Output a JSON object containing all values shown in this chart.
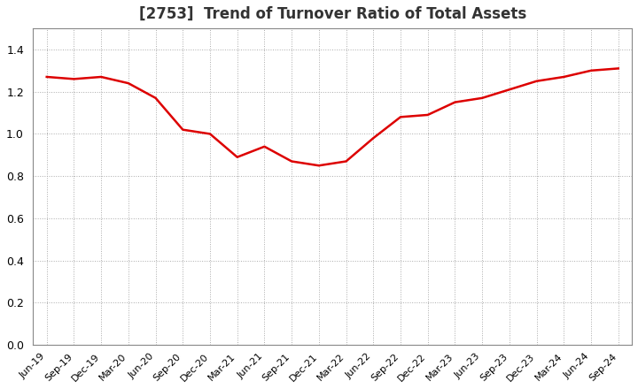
{
  "title": "[2753]  Trend of Turnover Ratio of Total Assets",
  "title_fontsize": 12,
  "title_color": "#333333",
  "line_color": "#dd0000",
  "line_width": 1.8,
  "background_color": "#ffffff",
  "grid_color": "#aaaaaa",
  "ylim": [
    0.0,
    1.5
  ],
  "yticks": [
    0.0,
    0.2,
    0.4,
    0.6,
    0.8,
    1.0,
    1.2,
    1.4
  ],
  "x_labels": [
    "Jun-19",
    "Sep-19",
    "Dec-19",
    "Mar-20",
    "Jun-20",
    "Sep-20",
    "Dec-20",
    "Mar-21",
    "Jun-21",
    "Sep-21",
    "Dec-21",
    "Mar-22",
    "Jun-22",
    "Sep-22",
    "Dec-22",
    "Mar-23",
    "Jun-23",
    "Sep-23",
    "Dec-23",
    "Mar-24",
    "Jun-24",
    "Sep-24"
  ],
  "values": [
    1.27,
    1.26,
    1.27,
    1.24,
    1.17,
    1.02,
    1.0,
    0.89,
    0.94,
    0.87,
    0.85,
    0.87,
    0.98,
    1.08,
    1.09,
    1.15,
    1.17,
    1.21,
    1.25,
    1.27,
    1.3,
    1.31
  ]
}
